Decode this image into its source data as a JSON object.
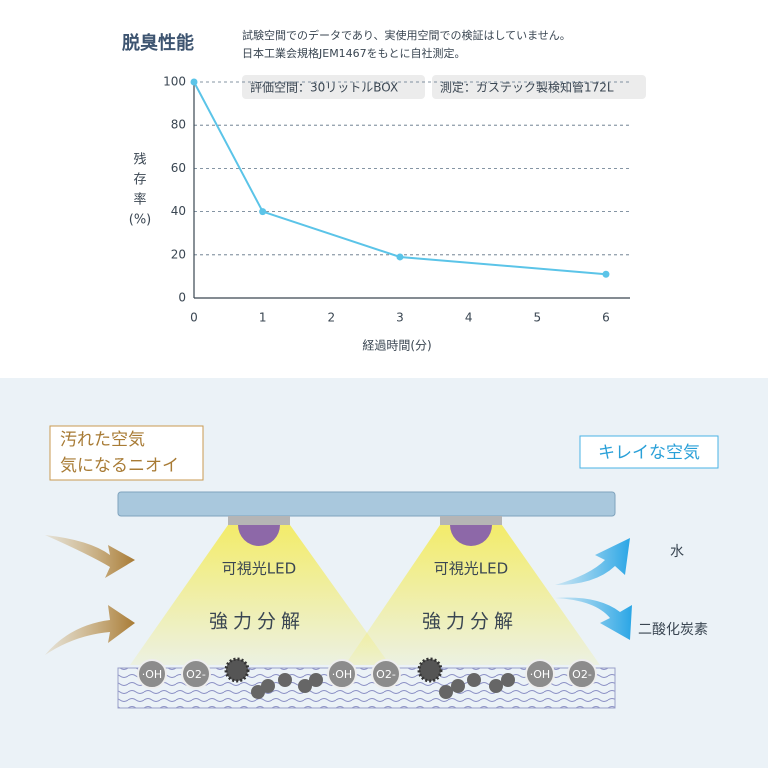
{
  "chart_data": {
    "type": "line",
    "title": "脱臭性能",
    "notes": [
      "試験空間でのデータであり、実使用空間での検証はしていません。",
      "日本工業会規格JEM1467をもとに自社測定。"
    ],
    "tags": [
      "評価空間：30リットルBOX",
      "測定：ガステック製検知管172L"
    ],
    "x": [
      0,
      1,
      3,
      6
    ],
    "values": [
      100,
      40,
      19,
      11
    ],
    "color": "#5bc4e8",
    "xlabel": "経過時間(分)",
    "ylabel_lines": [
      "残",
      "存",
      "率",
      "(%)"
    ],
    "xlim": [
      0,
      6.35
    ],
    "ylim": [
      0,
      100
    ],
    "xticks": [
      0,
      1,
      2,
      3,
      4,
      5,
      6
    ],
    "yticks": [
      0,
      20,
      40,
      60,
      80,
      100
    ],
    "grid": true
  },
  "diagram": {
    "dirty_air": [
      "汚れた空気",
      "気になるニオイ"
    ],
    "clean_air": "キレイな空気",
    "led": "可視光LED",
    "decompose": "強力分解",
    "water": "水",
    "co2": "二酸化炭素",
    "hydroxyl": "·OH",
    "superoxide": "O2-"
  }
}
